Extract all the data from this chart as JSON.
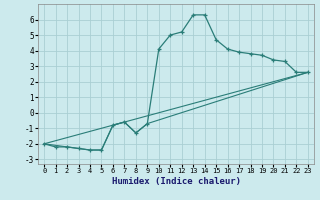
{
  "xlabel": "Humidex (Indice chaleur)",
  "background_color": "#cceaed",
  "grid_color": "#aacfd3",
  "line_color": "#2a7d78",
  "xlim": [
    -0.5,
    23.5
  ],
  "ylim": [
    -3.3,
    7.0
  ],
  "yticks": [
    -3,
    -2,
    -1,
    0,
    1,
    2,
    3,
    4,
    5,
    6
  ],
  "xticks": [
    0,
    1,
    2,
    3,
    4,
    5,
    6,
    7,
    8,
    9,
    10,
    11,
    12,
    13,
    14,
    15,
    16,
    17,
    18,
    19,
    20,
    21,
    22,
    23
  ],
  "line1_x": [
    0,
    1,
    2,
    3,
    4,
    5,
    6,
    7,
    8,
    9,
    10,
    11,
    12,
    13,
    14,
    15,
    16,
    17,
    18,
    19,
    20,
    21,
    22,
    23
  ],
  "line1_y": [
    -2.0,
    -2.2,
    -2.2,
    -2.3,
    -2.4,
    -2.4,
    -0.8,
    -0.6,
    -1.3,
    -0.7,
    4.1,
    5.0,
    5.2,
    6.3,
    6.3,
    4.7,
    4.1,
    3.9,
    3.8,
    3.7,
    3.4,
    3.3,
    2.6,
    2.6
  ],
  "line2_x": [
    0,
    23
  ],
  "line2_y": [
    -2.0,
    2.6
  ],
  "line3_x": [
    0,
    3,
    4,
    5,
    6,
    7,
    8,
    9,
    23
  ],
  "line3_y": [
    -2.0,
    -2.3,
    -2.4,
    -2.4,
    -0.8,
    -0.6,
    -1.3,
    -0.7,
    2.6
  ]
}
